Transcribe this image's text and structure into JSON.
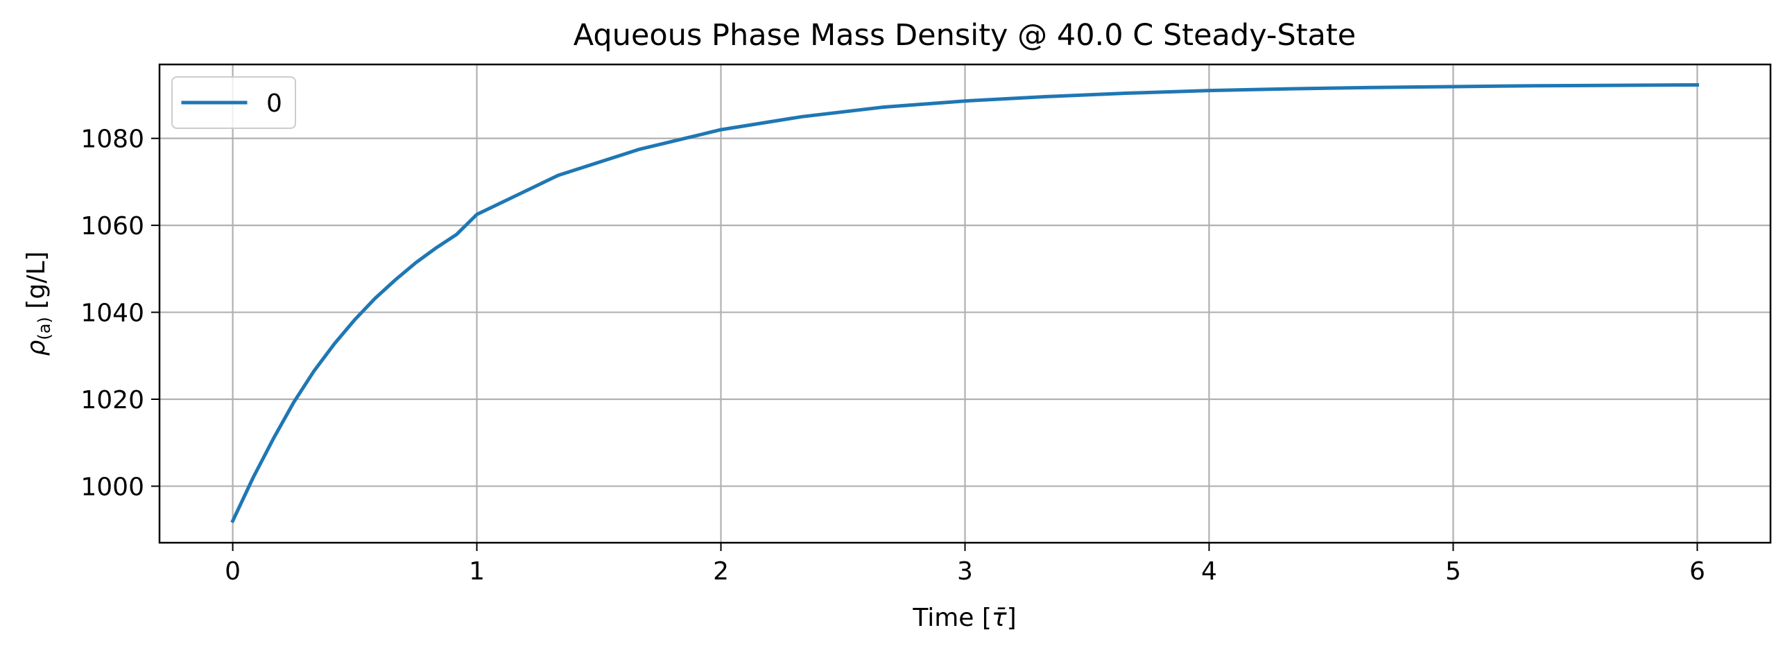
{
  "chart_data": {
    "type": "line",
    "title": "Aqueous Phase Mass Density @ 40.0 C Steady-State",
    "xlabel_main": "Time [",
    "xlabel_symbol": "τ̄",
    "xlabel_end": "]",
    "ylabel_symbol": "ρ",
    "ylabel_subscript": "(a)",
    "ylabel_unit": " [g/L]",
    "xlim": [
      -0.3,
      6.3
    ],
    "ylim": [
      987,
      1097
    ],
    "xticks": [
      0,
      1,
      2,
      3,
      4,
      5,
      6
    ],
    "yticks": [
      1000,
      1020,
      1040,
      1060,
      1080
    ],
    "grid": true,
    "legend_position": "upper-left",
    "series": [
      {
        "name": "0",
        "color": "#1f77b4",
        "x": [
          0,
          0.083,
          0.167,
          0.25,
          0.333,
          0.417,
          0.5,
          0.583,
          0.667,
          0.75,
          0.833,
          0.917,
          1.0,
          1.333,
          1.667,
          2.0,
          2.333,
          2.667,
          3.0,
          3.333,
          3.667,
          4.0,
          4.333,
          4.667,
          5.0,
          5.333,
          5.667,
          6.0
        ],
        "y": [
          992,
          1001.9,
          1011.0,
          1019.3,
          1026.5,
          1032.8,
          1038.3,
          1043.2,
          1047.5,
          1051.4,
          1054.8,
          1057.9,
          1062.5,
          1071.5,
          1077.5,
          1082.0,
          1085.0,
          1087.2,
          1088.6,
          1089.6,
          1090.4,
          1091.0,
          1091.4,
          1091.7,
          1091.9,
          1092.1,
          1092.2,
          1092.3
        ]
      }
    ]
  }
}
